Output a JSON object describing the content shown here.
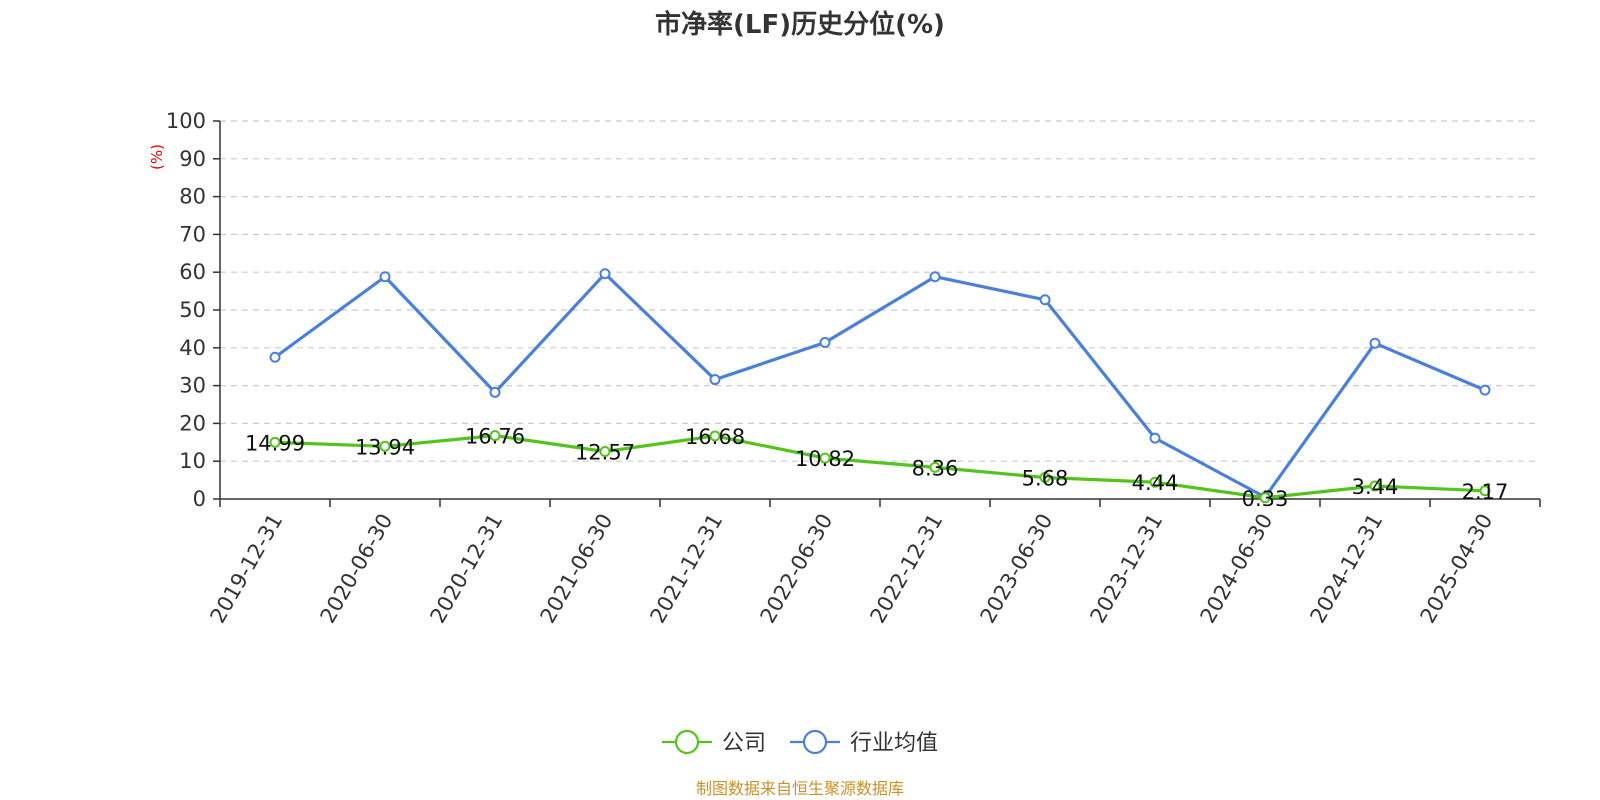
{
  "chart_data": {
    "type": "line",
    "title": "市净率(LF)历史分位(%)",
    "ylabel": "(%)",
    "xlabel": "",
    "ylim": [
      0,
      100
    ],
    "yticks": [
      0,
      10,
      20,
      30,
      40,
      50,
      60,
      70,
      80,
      90,
      100
    ],
    "grid": true,
    "legend_position": "bottom",
    "categories": [
      "2019-12-31",
      "2020-06-30",
      "2020-12-31",
      "2021-06-30",
      "2021-12-31",
      "2022-06-30",
      "2022-12-31",
      "2023-06-30",
      "2023-12-31",
      "2024-06-30",
      "2024-12-31",
      "2025-04-30"
    ],
    "series": [
      {
        "name": "公司",
        "color": "#52c41a",
        "values": [
          14.99,
          13.94,
          16.76,
          12.57,
          16.68,
          10.82,
          8.36,
          5.68,
          4.44,
          0.33,
          3.44,
          2.17
        ],
        "labels": [
          "14.99",
          "13.94",
          "16.76",
          "12.57",
          "16.68",
          "10.82",
          "8.36",
          "5.68",
          "4.44",
          "0.33",
          "3.44",
          "2.17"
        ]
      },
      {
        "name": "行业均值",
        "color": "#4a7fdb",
        "values": [
          37.5,
          58.8,
          28.2,
          59.6,
          31.6,
          41.4,
          58.8,
          52.7,
          16.1,
          0.5,
          41.2,
          28.8
        ]
      }
    ],
    "source": "制图数据来自恒生聚源数据库"
  }
}
